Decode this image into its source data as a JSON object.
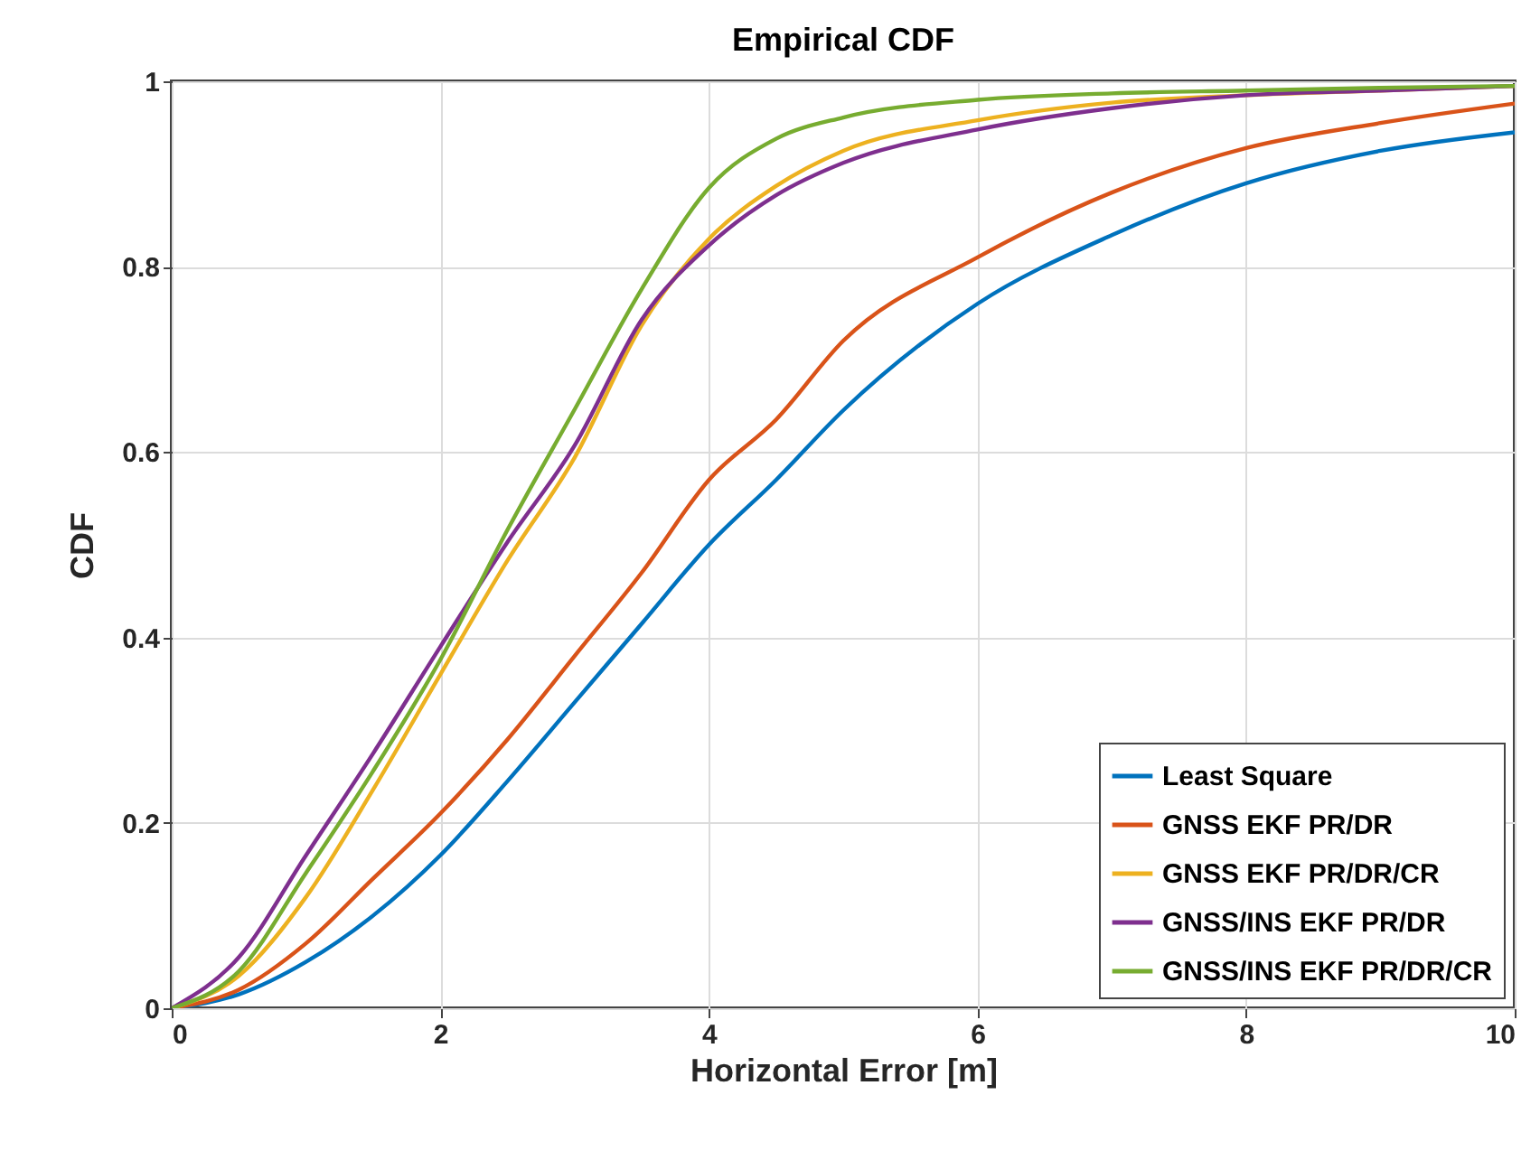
{
  "chart_data": {
    "type": "line",
    "title": "Empirical CDF",
    "xlabel": "Horizontal Error [m]",
    "ylabel": "CDF",
    "x": [
      0,
      0.5,
      1,
      1.5,
      2,
      2.5,
      3,
      3.5,
      4,
      4.5,
      5,
      6,
      7,
      8,
      9,
      10
    ],
    "series": [
      {
        "name": "Least Square",
        "color": "#0072bd",
        "values": [
          0,
          0.015,
          0.05,
          0.1,
          0.165,
          0.245,
          0.33,
          0.415,
          0.5,
          0.57,
          0.645,
          0.76,
          0.834,
          0.89,
          0.925,
          0.945
        ]
      },
      {
        "name": "GNSS EKF PR/DR",
        "color": "#d95319",
        "values": [
          0,
          0.02,
          0.07,
          0.14,
          0.21,
          0.29,
          0.38,
          0.47,
          0.57,
          0.635,
          0.72,
          0.81,
          0.88,
          0.928,
          0.955,
          0.976
        ]
      },
      {
        "name": "GNSS EKF PR/DR/CR",
        "color": "#edb120",
        "values": [
          0,
          0.035,
          0.12,
          0.236,
          0.36,
          0.483,
          0.594,
          0.737,
          0.83,
          0.887,
          0.925,
          0.958,
          0.977,
          0.985,
          0.99,
          0.995
        ]
      },
      {
        "name": "GNSS/INS EKF PR/DR",
        "color": "#7e2f8e",
        "values": [
          0,
          0.055,
          0.165,
          0.275,
          0.39,
          0.503,
          0.607,
          0.743,
          0.823,
          0.877,
          0.912,
          0.948,
          0.971,
          0.985,
          0.99,
          0.995
        ]
      },
      {
        "name": "GNSS/INS EKF PR/DR/CR",
        "color": "#77ac30",
        "values": [
          0,
          0.04,
          0.146,
          0.256,
          0.376,
          0.516,
          0.646,
          0.776,
          0.885,
          0.938,
          0.961,
          0.98,
          0.987,
          0.99,
          0.993,
          0.995
        ]
      }
    ],
    "xlim": [
      0,
      10
    ],
    "xticks": [
      0,
      2,
      4,
      6,
      8,
      10
    ],
    "ylim": [
      0,
      1
    ],
    "yticks": [
      0,
      0.2,
      0.4,
      0.6,
      0.8,
      1
    ],
    "grid": true,
    "legend": "bottom right",
    "marker": "none",
    "line_style": "solid"
  }
}
